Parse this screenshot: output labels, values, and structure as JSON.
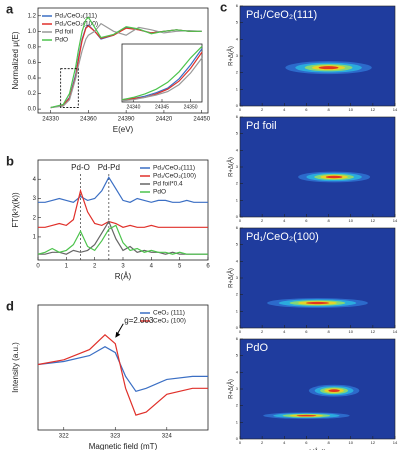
{
  "chart_data": [
    {
      "type": "line",
      "label": "a",
      "xlabel": "E(eV)",
      "ylabel": "Normalized μ(E)",
      "x": [
        24330,
        24340,
        24345,
        24350,
        24352,
        24355,
        24358,
        24360,
        24365,
        24370,
        24380,
        24390,
        24400,
        24410,
        24420,
        24430,
        24440,
        24450
      ],
      "series": [
        {
          "name": "Pd₁/CeO₂(111)",
          "color": "#3b6fc4",
          "values": [
            0.02,
            0.05,
            0.15,
            0.45,
            0.65,
            0.9,
            1.05,
            1.08,
            1.0,
            0.9,
            0.95,
            1.05,
            1.02,
            0.98,
            1.0,
            1.02,
            1.0,
            1.0
          ]
        },
        {
          "name": "Pd₁/CeO₂(100)",
          "color": "#e0302a",
          "values": [
            0.02,
            0.05,
            0.14,
            0.42,
            0.62,
            0.88,
            1.04,
            1.07,
            1.0,
            0.91,
            0.95,
            1.04,
            1.02,
            0.98,
            1.0,
            1.02,
            1.0,
            1.0
          ]
        },
        {
          "name": "Pd foil",
          "color": "#999999",
          "values": [
            0.02,
            0.04,
            0.12,
            0.4,
            0.55,
            0.75,
            0.9,
            0.95,
            1.0,
            1.1,
            1.0,
            0.95,
            1.05,
            1.02,
            0.98,
            1.0,
            1.01,
            1.0
          ]
        },
        {
          "name": "PdO",
          "color": "#4cc34c",
          "values": [
            0.02,
            0.06,
            0.2,
            0.55,
            0.75,
            1.0,
            1.15,
            1.18,
            1.05,
            0.92,
            0.96,
            1.06,
            1.03,
            0.97,
            1.0,
            1.02,
            1.0,
            1.0
          ]
        }
      ],
      "xlim": [
        24320,
        24455
      ],
      "ylim": [
        -0.05,
        1.3
      ],
      "xticks": [
        24330,
        24360,
        24390,
        24420,
        24450
      ],
      "yticks": [
        {
          "value": 0,
          "label": "0.0"
        },
        0.2,
        0.4,
        0.6,
        0.8,
        {
          "value": 1,
          "label": "1.0"
        },
        1.2
      ],
      "legend": "upper left"
    },
    {
      "type": "line",
      "x": [
        24338,
        24340,
        24342,
        24344,
        24346,
        24348,
        24350,
        24352
      ],
      "series": [
        {
          "name": "Pd₁/CeO₂(111)",
          "color": "#3b6fc4",
          "values": [
            0.04,
            0.05,
            0.07,
            0.1,
            0.14,
            0.22,
            0.34,
            0.48
          ]
        },
        {
          "name": "Pd₁/CeO₂(100)",
          "color": "#e0302a",
          "values": [
            0.04,
            0.05,
            0.06,
            0.09,
            0.13,
            0.2,
            0.31,
            0.45
          ]
        },
        {
          "name": "Pd foil",
          "color": "#999999",
          "values": [
            0.03,
            0.04,
            0.06,
            0.08,
            0.11,
            0.17,
            0.27,
            0.4
          ]
        },
        {
          "name": "PdO",
          "color": "#4cc34c",
          "values": [
            0.04,
            0.06,
            0.09,
            0.13,
            0.19,
            0.28,
            0.4,
            0.5
          ]
        }
      ],
      "xlim": [
        24338,
        24352
      ],
      "ylim": [
        0.02,
        0.52
      ],
      "xticks": [
        24340,
        24345,
        24350
      ]
    },
    {
      "type": "line",
      "label": "b",
      "xlabel": "R(Å)",
      "ylabel": "FT(k³χ(k))",
      "x": [
        0,
        0.25,
        0.5,
        0.75,
        1,
        1.25,
        1.5,
        1.75,
        2,
        2.25,
        2.5,
        2.75,
        3,
        3.25,
        3.5,
        3.75,
        4,
        4.25,
        4.5,
        4.75,
        5,
        5.25,
        5.5,
        5.75,
        6
      ],
      "series": [
        {
          "name": "Pd₁/CeO₂(111)",
          "color": "#3b6fc4",
          "values": [
            2.8,
            2.8,
            2.9,
            3.0,
            2.9,
            2.8,
            3.1,
            2.9,
            3.0,
            3.4,
            4.1,
            3.5,
            2.9,
            2.8,
            3.0,
            2.9,
            2.8,
            2.9,
            2.9,
            2.8,
            2.8,
            2.9,
            2.8,
            2.8,
            2.8
          ]
        },
        {
          "name": "Pd₁/CeO₂(100)",
          "color": "#e0302a",
          "values": [
            1.5,
            1.5,
            1.6,
            1.7,
            1.6,
            1.9,
            3.4,
            2.3,
            1.7,
            1.6,
            1.8,
            1.7,
            1.5,
            1.6,
            1.5,
            1.5,
            1.6,
            1.5,
            1.5,
            1.5,
            1.5,
            1.5,
            1.5,
            1.5,
            1.5
          ]
        },
        {
          "name": "Pd foil*0.4",
          "color": "#666666",
          "values": [
            0.1,
            0.1,
            0.2,
            0.2,
            0.1,
            0.3,
            0.2,
            0.3,
            0.6,
            1.2,
            1.8,
            0.9,
            0.3,
            0.5,
            0.2,
            0.3,
            0.2,
            0.2,
            0.1,
            0.2,
            0.1,
            0.1,
            0.1,
            0.1,
            0.1
          ]
        },
        {
          "name": "PdO",
          "color": "#4cc34c",
          "values": [
            0.1,
            0.2,
            0.4,
            0.2,
            0.3,
            0.6,
            1.3,
            0.5,
            0.3,
            0.8,
            1.4,
            1.6,
            0.7,
            0.3,
            0.4,
            0.2,
            0.3,
            0.2,
            0.2,
            0.1,
            0.2,
            0.1,
            0.1,
            0.1,
            0.1
          ]
        }
      ],
      "xlim": [
        0,
        6
      ],
      "ylim": [
        -0.2,
        5
      ],
      "xticks": [
        0,
        1,
        2,
        3,
        4,
        5,
        6
      ],
      "yticks": [
        1,
        2,
        3,
        4
      ],
      "vlines": [
        {
          "text": "Pd-O",
          "x": 1.5
        },
        {
          "text": "Pd-Pd",
          "x": 2.5
        }
      ],
      "legend": "upper right"
    },
    {
      "type": "line",
      "label": "d",
      "xlabel": "Magnetic field (mT)",
      "ylabel": "Intensity (a.u.)",
      "x": [
        321.5,
        322,
        322.5,
        322.8,
        323,
        323.2,
        323.4,
        323.6,
        324,
        324.5,
        324.8
      ],
      "series": [
        {
          "name": "CeO₂ (111)",
          "color": "#3b6fc4",
          "values": [
            0.0,
            0.05,
            0.15,
            0.3,
            0.2,
            -0.2,
            -0.45,
            -0.4,
            -0.25,
            -0.2,
            -0.2
          ]
        },
        {
          "name": "CeO₂ (100)",
          "color": "#e0302a",
          "values": [
            0.0,
            0.08,
            0.25,
            0.5,
            0.35,
            -0.4,
            -0.85,
            -0.8,
            -0.5,
            -0.4,
            -0.4
          ]
        }
      ],
      "xlim": [
        321.5,
        324.8
      ],
      "ylim": [
        -1.1,
        1.0
      ],
      "xticks": [
        322,
        323,
        324
      ],
      "arrow": {
        "text": "g=2.003",
        "x": 323,
        "y": 0.45
      },
      "legend": "upper right"
    },
    {
      "type": "heatmap",
      "label": "c",
      "title": "Pd₁/CeO₂(111)",
      "ylabel": "R+Δ(Å)",
      "xlim": [
        0,
        14
      ],
      "ylim": [
        0,
        6
      ],
      "xticks": [
        0,
        2,
        4,
        6,
        8,
        10,
        12,
        14
      ],
      "yticks": [
        0,
        1,
        2,
        3,
        4,
        5,
        6
      ],
      "peaks": [
        {
          "k": 8,
          "r": 2.3,
          "wk": 6,
          "wr": 0.6
        }
      ]
    },
    {
      "type": "heatmap",
      "title": "Pd foil",
      "ylabel": "R+Δ(Å)",
      "xlim": [
        0,
        14
      ],
      "ylim": [
        0,
        6
      ],
      "xticks": [
        0,
        2,
        4,
        6,
        8,
        10,
        12,
        14
      ],
      "yticks": [
        0,
        1,
        2,
        3,
        4,
        5,
        6
      ],
      "peaks": [
        {
          "k": 8.5,
          "r": 2.4,
          "wk": 5,
          "wr": 0.5
        }
      ]
    },
    {
      "type": "heatmap",
      "title": "Pd₁/CeO₂(100)",
      "ylabel": "R+Δ(Å)",
      "xlim": [
        0,
        14
      ],
      "ylim": [
        0,
        6
      ],
      "xticks": [
        0,
        2,
        4,
        6,
        8,
        10,
        12,
        14
      ],
      "yticks": [
        0,
        1,
        2,
        3,
        4,
        5,
        6
      ],
      "peaks": [
        {
          "k": 7,
          "r": 1.5,
          "wk": 7,
          "wr": 0.45
        }
      ]
    },
    {
      "type": "heatmap",
      "title": "PdO",
      "ylabel": "R+Δ(Å)",
      "xlabel": "k(Å⁻¹)",
      "xlim": [
        0,
        14
      ],
      "ylim": [
        0,
        6
      ],
      "xticks": [
        0,
        2,
        4,
        6,
        8,
        10,
        12,
        14
      ],
      "yticks": [
        0,
        1,
        2,
        3,
        4,
        5,
        6
      ],
      "peaks": [
        {
          "k": 8.5,
          "r": 2.9,
          "wk": 3.5,
          "wr": 0.55
        },
        {
          "k": 6,
          "r": 1.4,
          "wk": 6,
          "wr": 0.3
        }
      ]
    }
  ]
}
